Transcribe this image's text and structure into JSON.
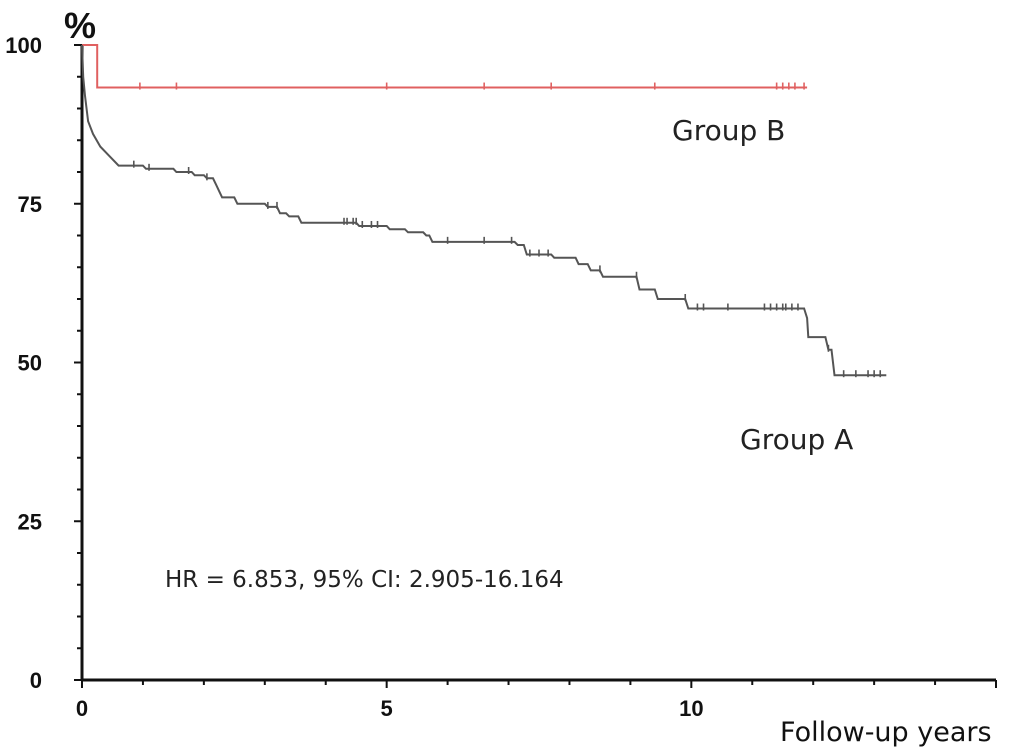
{
  "chart_data": {
    "type": "line",
    "subtype": "kaplan-meier step curve",
    "y_unit": "%",
    "xlabel": "Follow-up years",
    "ylabel": "",
    "xlim": [
      0,
      15
    ],
    "ylim": [
      0,
      100
    ],
    "x_ticks": [
      0,
      5,
      10
    ],
    "x_tick_labels": [
      "0",
      "5",
      "10"
    ],
    "y_ticks": [
      0,
      25,
      50,
      75,
      100
    ],
    "y_tick_labels": [
      "0",
      "25",
      "50",
      "75",
      "100"
    ],
    "grid": false,
    "annotation": "HR = 6.853, 95% CI: 2.905-16.164",
    "series": [
      {
        "name": "Group B",
        "color": "#e06060",
        "steps": [
          [
            0,
            100
          ],
          [
            0.25,
            100
          ],
          [
            0.25,
            93.3
          ],
          [
            11.9,
            93.3
          ]
        ],
        "censor_x": [
          0.95,
          1.55,
          5.0,
          6.6,
          7.7,
          9.4,
          11.4,
          11.5,
          11.6,
          11.7,
          11.85
        ]
      },
      {
        "name": "Group A",
        "color": "#555555",
        "steps": [
          [
            0,
            100
          ],
          [
            0.02,
            95
          ],
          [
            0.05,
            92
          ],
          [
            0.1,
            88
          ],
          [
            0.18,
            86
          ],
          [
            0.3,
            84
          ],
          [
            0.45,
            82.5
          ],
          [
            0.6,
            81
          ],
          [
            1.0,
            81
          ],
          [
            1.05,
            80.5
          ],
          [
            1.5,
            80.5
          ],
          [
            1.55,
            80
          ],
          [
            1.8,
            80
          ],
          [
            1.85,
            79.5
          ],
          [
            2.0,
            79.5
          ],
          [
            2.05,
            79
          ],
          [
            2.15,
            79
          ],
          [
            2.2,
            78
          ],
          [
            2.25,
            77
          ],
          [
            2.3,
            76
          ],
          [
            2.5,
            76
          ],
          [
            2.55,
            75
          ],
          [
            3.0,
            75
          ],
          [
            3.05,
            74.5
          ],
          [
            3.2,
            74.5
          ],
          [
            3.25,
            73.5
          ],
          [
            3.35,
            73.5
          ],
          [
            3.4,
            73
          ],
          [
            3.55,
            73
          ],
          [
            3.6,
            72
          ],
          [
            4.5,
            72
          ],
          [
            4.55,
            71.5
          ],
          [
            5.0,
            71.5
          ],
          [
            5.05,
            71
          ],
          [
            5.3,
            71
          ],
          [
            5.35,
            70.5
          ],
          [
            5.6,
            70.5
          ],
          [
            5.65,
            70
          ],
          [
            5.7,
            70
          ],
          [
            5.75,
            69
          ],
          [
            7.1,
            69
          ],
          [
            7.15,
            68.5
          ],
          [
            7.25,
            68.5
          ],
          [
            7.3,
            67
          ],
          [
            7.7,
            67
          ],
          [
            7.75,
            66.5
          ],
          [
            8.1,
            66.5
          ],
          [
            8.15,
            65.5
          ],
          [
            8.3,
            65.5
          ],
          [
            8.35,
            64.5
          ],
          [
            8.5,
            64.5
          ],
          [
            8.55,
            63.5
          ],
          [
            9.1,
            63.5
          ],
          [
            9.15,
            61.5
          ],
          [
            9.4,
            61.5
          ],
          [
            9.45,
            60
          ],
          [
            9.9,
            60
          ],
          [
            9.95,
            58.5
          ],
          [
            11.85,
            58.5
          ],
          [
            11.9,
            57
          ],
          [
            11.92,
            54
          ],
          [
            12.2,
            54
          ],
          [
            12.25,
            52
          ],
          [
            12.3,
            52
          ],
          [
            12.35,
            48
          ],
          [
            13.2,
            48
          ]
        ],
        "censor_x": [
          0.85,
          1.1,
          1.75,
          2.05,
          3.05,
          3.2,
          4.3,
          4.35,
          4.45,
          4.5,
          4.6,
          4.75,
          4.85,
          6.0,
          6.6,
          7.05,
          7.35,
          7.5,
          7.65,
          8.5,
          9.1,
          9.9,
          10.1,
          10.2,
          10.6,
          11.2,
          11.3,
          11.4,
          11.5,
          11.55,
          11.65,
          11.75,
          12.25,
          12.5,
          12.7,
          12.9,
          13.0,
          13.1
        ]
      }
    ]
  }
}
